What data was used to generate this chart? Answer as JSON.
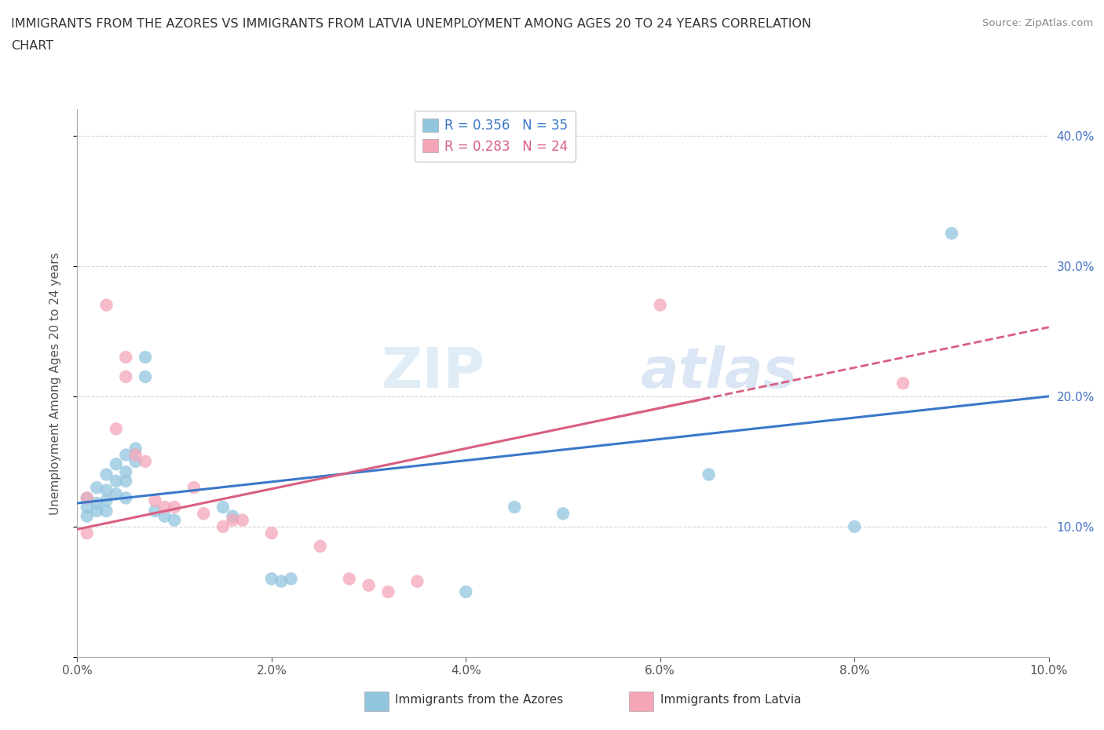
{
  "title_line1": "IMMIGRANTS FROM THE AZORES VS IMMIGRANTS FROM LATVIA UNEMPLOYMENT AMONG AGES 20 TO 24 YEARS CORRELATION",
  "title_line2": "CHART",
  "source_text": "Source: ZipAtlas.com",
  "ylabel_text": "Unemployment Among Ages 20 to 24 years",
  "azores_scatter": [
    [
      0.001,
      0.122
    ],
    [
      0.001,
      0.115
    ],
    [
      0.001,
      0.108
    ],
    [
      0.002,
      0.13
    ],
    [
      0.002,
      0.118
    ],
    [
      0.002,
      0.112
    ],
    [
      0.003,
      0.14
    ],
    [
      0.003,
      0.128
    ],
    [
      0.003,
      0.12
    ],
    [
      0.003,
      0.112
    ],
    [
      0.004,
      0.148
    ],
    [
      0.004,
      0.135
    ],
    [
      0.004,
      0.125
    ],
    [
      0.005,
      0.155
    ],
    [
      0.005,
      0.142
    ],
    [
      0.005,
      0.135
    ],
    [
      0.005,
      0.122
    ],
    [
      0.006,
      0.16
    ],
    [
      0.006,
      0.15
    ],
    [
      0.007,
      0.23
    ],
    [
      0.007,
      0.215
    ],
    [
      0.008,
      0.112
    ],
    [
      0.009,
      0.108
    ],
    [
      0.01,
      0.105
    ],
    [
      0.015,
      0.115
    ],
    [
      0.016,
      0.108
    ],
    [
      0.02,
      0.06
    ],
    [
      0.021,
      0.058
    ],
    [
      0.022,
      0.06
    ],
    [
      0.04,
      0.05
    ],
    [
      0.045,
      0.115
    ],
    [
      0.05,
      0.11
    ],
    [
      0.065,
      0.14
    ],
    [
      0.08,
      0.1
    ],
    [
      0.09,
      0.325
    ]
  ],
  "latvia_scatter": [
    [
      0.001,
      0.122
    ],
    [
      0.001,
      0.095
    ],
    [
      0.003,
      0.27
    ],
    [
      0.004,
      0.175
    ],
    [
      0.005,
      0.23
    ],
    [
      0.005,
      0.215
    ],
    [
      0.006,
      0.155
    ],
    [
      0.007,
      0.15
    ],
    [
      0.008,
      0.12
    ],
    [
      0.009,
      0.115
    ],
    [
      0.01,
      0.115
    ],
    [
      0.012,
      0.13
    ],
    [
      0.013,
      0.11
    ],
    [
      0.015,
      0.1
    ],
    [
      0.016,
      0.105
    ],
    [
      0.017,
      0.105
    ],
    [
      0.02,
      0.095
    ],
    [
      0.025,
      0.085
    ],
    [
      0.028,
      0.06
    ],
    [
      0.03,
      0.055
    ],
    [
      0.032,
      0.05
    ],
    [
      0.035,
      0.058
    ],
    [
      0.06,
      0.27
    ],
    [
      0.085,
      0.21
    ]
  ],
  "azores_R": 0.356,
  "azores_N": 35,
  "latvia_R": 0.283,
  "latvia_N": 24,
  "azores_color": "#92c5de",
  "latvia_color": "#f4a6b8",
  "azores_line_color": "#3a78c9",
  "latvia_line_color": "#d85f80",
  "xlim": [
    0,
    0.1
  ],
  "ylim": [
    0,
    0.42
  ],
  "xticks": [
    0.0,
    0.02,
    0.04,
    0.06,
    0.08,
    0.1
  ],
  "yticks": [
    0.0,
    0.1,
    0.2,
    0.3,
    0.4
  ],
  "xticklabels": [
    "0.0%",
    "2.0%",
    "4.0%",
    "6.0%",
    "8.0%",
    "10.0%"
  ],
  "right_yticklabels": [
    "",
    "10.0%",
    "20.0%",
    "30.0%",
    "40.0%"
  ],
  "watermark_zip": "ZIP",
  "watermark_atlas": "atlas",
  "background_color": "#ffffff",
  "grid_color": "#cccccc",
  "tick_label_color": "#4472c4",
  "legend_bottom_azores": "Immigrants from the Azores",
  "legend_bottom_latvia": "Immigrants from Latvia"
}
